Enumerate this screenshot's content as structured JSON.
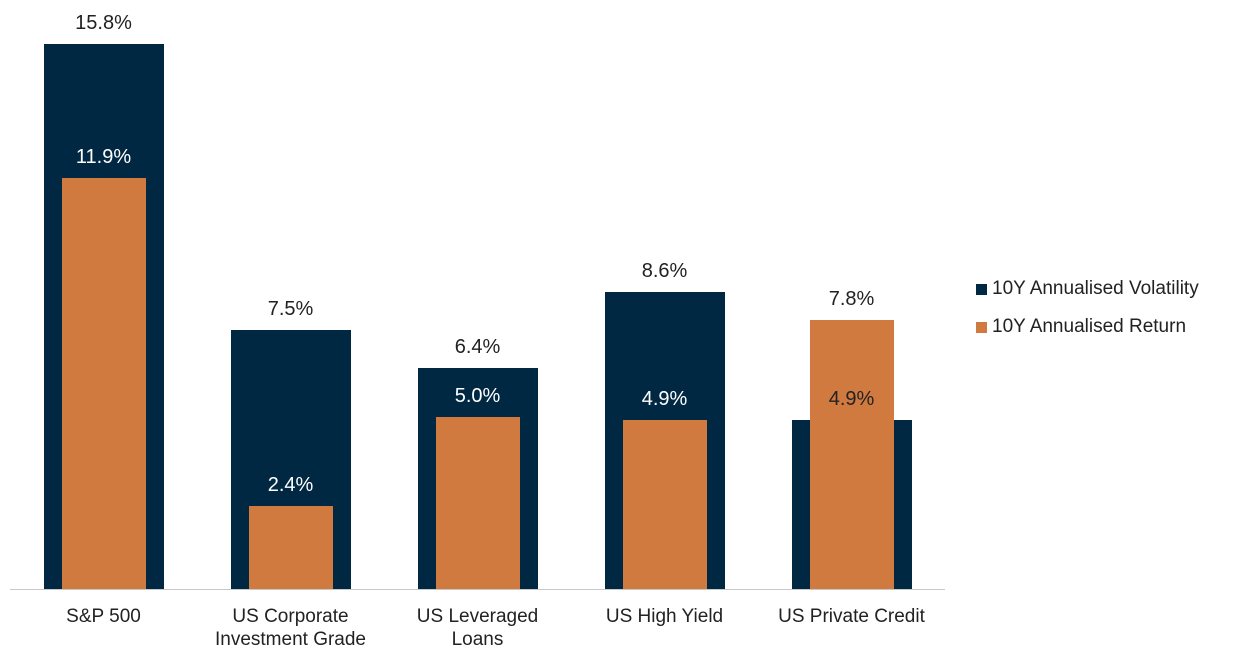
{
  "chart_data": {
    "type": "bar",
    "categories": [
      "S&P 500",
      "US Corporate Investment Grade",
      "US Leveraged Loans",
      "US High Yield",
      "US Private Credit"
    ],
    "series": [
      {
        "name": "10Y Annualised Volatility",
        "color": "#012842",
        "values": [
          15.8,
          7.5,
          6.4,
          8.6,
          4.9
        ],
        "value_labels": [
          "15.8%",
          "7.5%",
          "6.4%",
          "8.6%",
          "4.9%"
        ]
      },
      {
        "name": "10Y Annualised Return",
        "color": "#d07a3f",
        "values": [
          11.9,
          2.4,
          5.0,
          4.9,
          7.8
        ],
        "value_labels": [
          "11.9%",
          "2.4%",
          "5.0%",
          "4.9%",
          "7.8%"
        ]
      }
    ],
    "ylim": [
      0,
      16
    ],
    "legend": "right"
  }
}
